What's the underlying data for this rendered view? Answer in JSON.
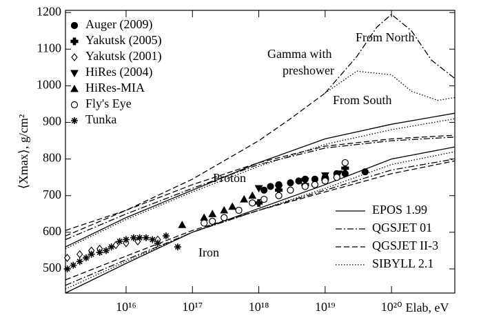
{
  "chart_data": {
    "type": "scatter-lines",
    "y_label": "⟨Xmax⟩, g/cm²",
    "x_label": "Elab, eV",
    "xscale": "log",
    "color": "#000000",
    "xlim": [
      1220000000000000.0,
      9e+20
    ],
    "ylim": [
      434,
      1206
    ],
    "xticks": [
      {
        "value": 1e+16,
        "label": "10¹⁶"
      },
      {
        "value": 1e+17,
        "label": "10¹⁷"
      },
      {
        "value": 1e+18,
        "label": "10¹⁸"
      },
      {
        "value": 1e+19,
        "label": "10¹⁹"
      },
      {
        "value": 1e+20,
        "label": "10²⁰"
      }
    ],
    "yticks": [
      500,
      600,
      700,
      800,
      900,
      1000,
      1100,
      1200
    ],
    "series": [
      {
        "name": "Auger (2009)",
        "marker": "filled-circle",
        "x": [
          1.2e+18,
          1.5e+18,
          2e+18,
          3e+18,
          4e+18,
          5e+18,
          7e+18,
          1e+19,
          1.5e+19,
          2e+19,
          4e+19
        ],
        "values": [
          715,
          725,
          730,
          735,
          740,
          745,
          745,
          750,
          760,
          760,
          765
        ]
      },
      {
        "name": "Yakutsk (2005)",
        "marker": "filled-cross",
        "x": [
          1e+18,
          2e+18,
          5e+18,
          1e+19,
          2e+19
        ],
        "values": [
          680,
          715,
          730,
          745,
          775
        ]
      },
      {
        "name": "Yakutsk (2001)",
        "marker": "open-diamond",
        "x": [
          1300000000000000.0,
          2000000000000000.0,
          3000000000000000.0,
          4000000000000000.0,
          7000000000000000.0,
          1e+16,
          1.5e+16,
          3e+16
        ],
        "values": [
          530,
          540,
          550,
          555,
          565,
          570,
          575,
          580
        ]
      },
      {
        "name": "HiRes (2004)",
        "marker": "down-triangle",
        "x": [
          1e+18,
          2e+18,
          5e+18,
          1e+19,
          1.6e+19
        ],
        "values": [
          720,
          720,
          740,
          755,
          760
        ]
      },
      {
        "name": "HiRes-MIA",
        "marker": "up-triangle",
        "x": [
          7e+16,
          1.5e+17,
          2e+17,
          3e+17,
          4e+17,
          6e+17,
          8e+17
        ],
        "values": [
          620,
          640,
          650,
          660,
          670,
          690,
          700
        ]
      },
      {
        "name": "Fly's Eye",
        "marker": "open-circle",
        "x": [
          1.5e+17,
          2e+17,
          3e+17,
          5e+17,
          8e+17,
          1.2e+18,
          2e+18,
          3e+18,
          5e+18,
          7e+18,
          1e+19,
          1.5e+19,
          2e+19
        ],
        "values": [
          625,
          630,
          640,
          660,
          680,
          690,
          700,
          715,
          725,
          730,
          740,
          750,
          790
        ]
      },
      {
        "name": "Tunka",
        "marker": "asterisk",
        "x": [
          1300000000000000.0,
          1600000000000000.0,
          2000000000000000.0,
          2500000000000000.0,
          3000000000000000.0,
          4000000000000000.0,
          5000000000000000.0,
          6000000000000000.0,
          8000000000000000.0,
          1e+16,
          1.3e+16,
          1.6e+16,
          2e+16,
          2.5e+16,
          3e+16,
          4e+16,
          6e+16
        ],
        "values": [
          500,
          510,
          520,
          530,
          540,
          545,
          550,
          560,
          575,
          580,
          585,
          585,
          585,
          580,
          570,
          590,
          560
        ]
      }
    ],
    "model_x": [
      1220000000000000.0,
      1e+16,
      1e+17,
      1e+18,
      1e+19,
      1e+20,
      9e+20
    ],
    "models": [
      {
        "name": "EPOS 1.99",
        "dash": "none",
        "proton": [
          560,
          640,
          715,
          790,
          855,
          895,
          925
        ],
        "iron": [
          434,
          515,
          600,
          665,
          730,
          800,
          833
        ]
      },
      {
        "name": "QGSJET 01",
        "dash": "9,3,2,3",
        "proton": [
          580,
          650,
          720,
          785,
          830,
          850,
          860
        ],
        "iron": [
          455,
          525,
          600,
          660,
          715,
          770,
          800
        ]
      },
      {
        "name": "QGSJET II-3",
        "dash": "8,4",
        "proton": [
          590,
          660,
          730,
          790,
          835,
          855,
          865
        ],
        "iron": [
          470,
          535,
          605,
          660,
          710,
          760,
          795
        ]
      },
      {
        "name": "SIBYLL 2.1",
        "dash": "1.5,2.5",
        "proton": [
          555,
          635,
          710,
          780,
          840,
          880,
          910
        ],
        "iron": [
          445,
          520,
          600,
          660,
          720,
          785,
          820
        ]
      }
    ],
    "gamma": {
      "x": [
        1220000000000000.0,
        1e+16,
        1e+17,
        1e+18,
        3e+18,
        1e+19
      ],
      "values": [
        605,
        660,
        745,
        850,
        910,
        980
      ],
      "dash": "8,4"
    },
    "gamma_north": {
      "x": [
        1e+19,
        3e+19,
        6e+19,
        1e+20,
        2e+20,
        4e+20,
        9e+20
      ],
      "values": [
        980,
        1080,
        1160,
        1195,
        1150,
        1070,
        1020
      ],
      "dash": "9,3,2,3"
    },
    "gamma_south": {
      "x": [
        1e+19,
        3e+19,
        1e+20,
        2e+20,
        5e+20,
        9e+20
      ],
      "values": [
        980,
        1040,
        1030,
        985,
        960,
        968
      ],
      "dash": "1.5,2.5"
    },
    "annotations": {
      "proton": "Proton",
      "iron": "Iron",
      "gamma_1": "Gamma with",
      "gamma_2": "preshower",
      "north": "From North",
      "south": "From South"
    }
  }
}
